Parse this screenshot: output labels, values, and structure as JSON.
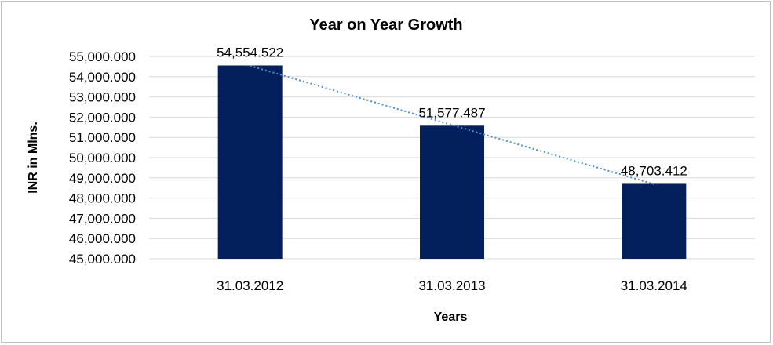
{
  "chart_data": {
    "type": "bar",
    "title": "Year on Year Growth",
    "xlabel": "Years",
    "ylabel": "INR in Mlns.",
    "categories": [
      "31.03.2012",
      "31.03.2013",
      "31.03.2014"
    ],
    "values": [
      54554.522,
      51577.487,
      48703.412
    ],
    "data_labels": [
      "54,554.522",
      "51,577.487",
      "48,703.412"
    ],
    "ylim": [
      45000,
      55000
    ],
    "yticks": [
      45000,
      46000,
      47000,
      48000,
      49000,
      50000,
      51000,
      52000,
      53000,
      54000,
      55000
    ],
    "ytick_labels": [
      "45,000.000",
      "46,000.000",
      "47,000.000",
      "48,000.000",
      "49,000.000",
      "50,000.000",
      "51,000.000",
      "52,000.000",
      "53,000.000",
      "54,000.000",
      "55,000.000"
    ],
    "grid": true,
    "legend": "none",
    "trendline": "linear, dotted",
    "colors": {
      "bar": "#03205c",
      "trendline": "#4a90d0",
      "grid": "#d9d9d9"
    }
  }
}
